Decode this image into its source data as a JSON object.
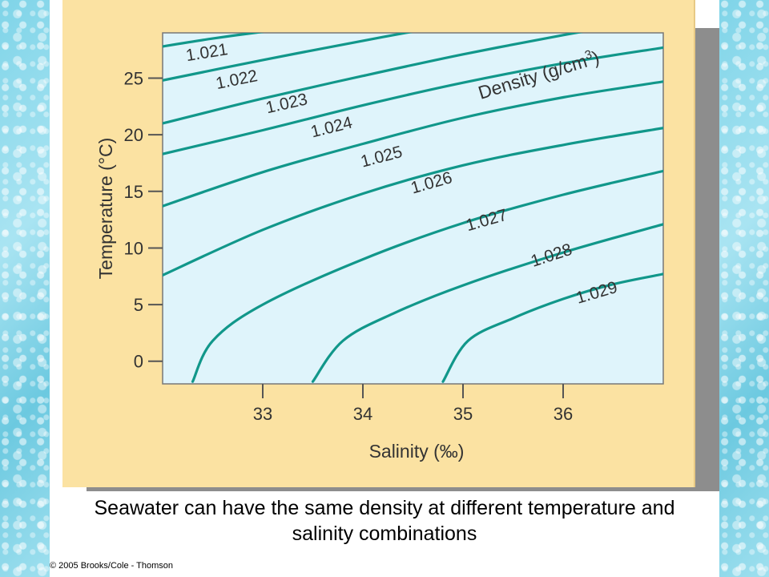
{
  "caption": {
    "line1": "Seawater can have the same density at different temperature and",
    "line2": "salinity combinations"
  },
  "copyright": "© 2005 Brooks/Cole - Thomson",
  "colors": {
    "card": "#fbe2a2",
    "plot_bg": "#dff4fb",
    "curve": "#11978a",
    "axis": "#555555"
  },
  "chart_data": {
    "type": "line",
    "title": "Density (g/cm3)",
    "xlabel": "Salinity (‰)",
    "ylabel": "Temperature (°C)",
    "xlim": [
      32.0,
      37.0
    ],
    "ylim": [
      -2.0,
      29.0
    ],
    "xticks": [
      33,
      34,
      35,
      36
    ],
    "yticks": [
      0,
      5,
      10,
      15,
      20,
      25
    ],
    "grid": false,
    "series": [
      {
        "name": "1.021",
        "label_at": [
          32.45,
          26.8
        ],
        "points": [
          [
            32.0,
            27.8
          ],
          [
            32.5,
            28.5
          ],
          [
            33.0,
            29.1
          ],
          [
            33.4,
            29.5
          ]
        ]
      },
      {
        "name": "1.022",
        "label_at": [
          32.75,
          24.4
        ],
        "points": [
          [
            32.0,
            24.8
          ],
          [
            33.0,
            26.6
          ],
          [
            34.0,
            28.3
          ],
          [
            34.8,
            29.6
          ]
        ]
      },
      {
        "name": "1.023",
        "label_at": [
          33.25,
          22.3
        ],
        "points": [
          [
            32.0,
            21.0
          ],
          [
            33.0,
            23.2
          ],
          [
            34.0,
            25.2
          ],
          [
            35.0,
            27.1
          ],
          [
            36.0,
            28.8
          ],
          [
            36.4,
            29.4
          ]
        ]
      },
      {
        "name": "1.024",
        "label_at": [
          33.7,
          20.2
        ],
        "points": [
          [
            32.0,
            18.3
          ],
          [
            33.0,
            20.4
          ],
          [
            34.0,
            22.6
          ],
          [
            35.0,
            24.6
          ],
          [
            36.0,
            26.3
          ],
          [
            37.0,
            27.7
          ]
        ]
      },
      {
        "name": "1.025",
        "label_at": [
          34.2,
          17.6
        ],
        "points": [
          [
            32.0,
            13.7
          ],
          [
            33.0,
            16.7
          ],
          [
            34.0,
            19.2
          ],
          [
            35.0,
            21.5
          ],
          [
            36.0,
            23.3
          ],
          [
            37.0,
            24.7
          ]
        ]
      },
      {
        "name": "1.026",
        "label_at": [
          34.7,
          15.3
        ],
        "points": [
          [
            32.0,
            7.6
          ],
          [
            33.0,
            11.6
          ],
          [
            34.0,
            14.8
          ],
          [
            35.0,
            17.3
          ],
          [
            36.0,
            19.1
          ],
          [
            37.0,
            20.6
          ]
        ]
      },
      {
        "name": "1.027",
        "label_at": [
          35.25,
          12.0
        ],
        "points": [
          [
            32.3,
            -1.8
          ],
          [
            32.5,
            1.8
          ],
          [
            33.0,
            5.0
          ],
          [
            34.0,
            9.0
          ],
          [
            35.0,
            12.2
          ],
          [
            36.0,
            14.7
          ],
          [
            37.0,
            16.8
          ]
        ]
      },
      {
        "name": "1.028",
        "label_at": [
          35.9,
          8.9
        ],
        "points": [
          [
            33.5,
            -1.8
          ],
          [
            33.8,
            1.8
          ],
          [
            34.3,
            4.2
          ],
          [
            35.0,
            6.7
          ],
          [
            36.0,
            9.6
          ],
          [
            37.0,
            12.1
          ]
        ]
      },
      {
        "name": "1.029",
        "label_at": [
          36.35,
          5.6
        ],
        "points": [
          [
            34.8,
            -1.8
          ],
          [
            35.05,
            1.8
          ],
          [
            35.5,
            3.8
          ],
          [
            36.0,
            5.5
          ],
          [
            36.5,
            6.8
          ],
          [
            37.0,
            7.7
          ]
        ]
      }
    ]
  }
}
